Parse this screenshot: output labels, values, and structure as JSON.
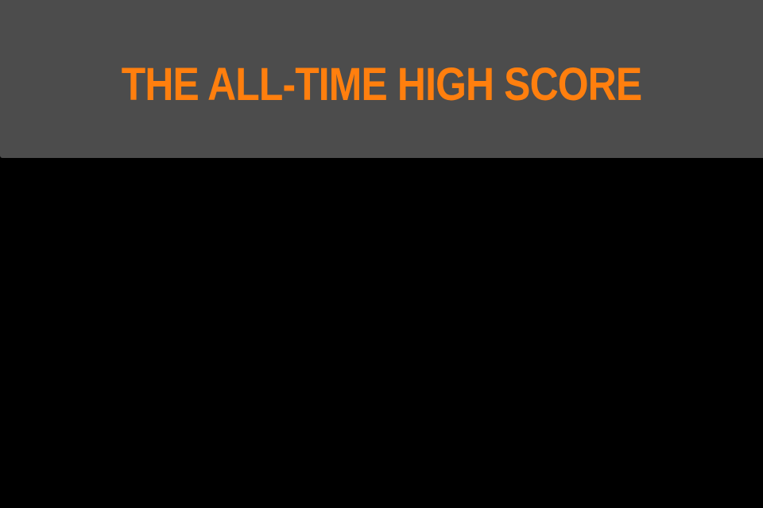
{
  "screen": {
    "title": "THE ALL-TIME HIGH SCORE"
  },
  "colors": {
    "header_background": "#4c4c4c",
    "title_text": "#ff7f0e",
    "content_background": "#000000"
  }
}
